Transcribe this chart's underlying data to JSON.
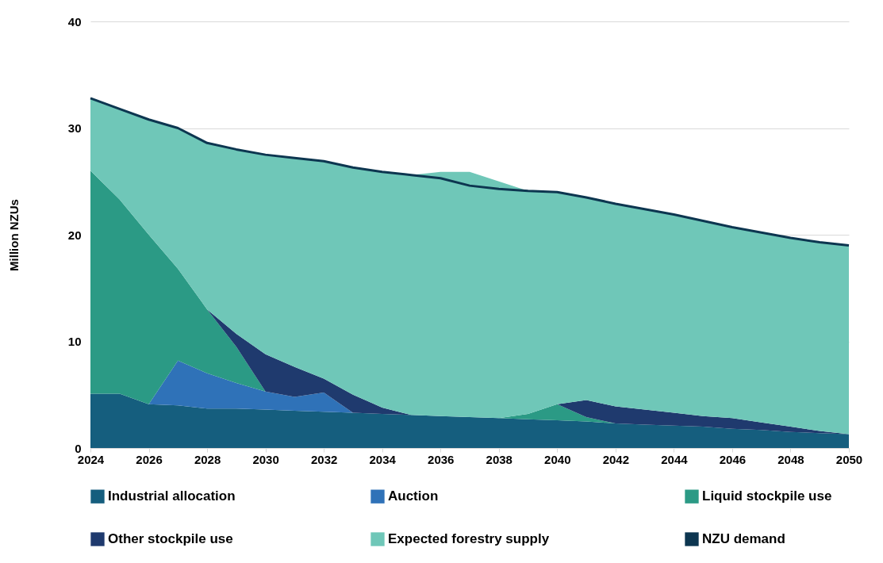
{
  "chart_data": {
    "type": "area",
    "ylabel": "Million NZUs",
    "stacked": true,
    "legend": "bottom",
    "grid": "y",
    "x": [
      2024,
      2025,
      2026,
      2027,
      2028,
      2029,
      2030,
      2031,
      2032,
      2033,
      2034,
      2035,
      2036,
      2037,
      2038,
      2039,
      2040,
      2041,
      2042,
      2043,
      2044,
      2045,
      2046,
      2047,
      2048,
      2049,
      2050
    ],
    "xlim": [
      2024,
      2050
    ],
    "xticks": [
      2024,
      2026,
      2028,
      2030,
      2032,
      2034,
      2036,
      2038,
      2040,
      2042,
      2044,
      2046,
      2048,
      2050
    ],
    "ylim": [
      0,
      40
    ],
    "yticks": [
      0,
      10,
      20,
      30,
      40
    ],
    "series": [
      {
        "name": "Industrial allocation",
        "type": "area",
        "color": "#155e7e",
        "values": [
          5.1,
          5.1,
          4.1,
          4.0,
          3.7,
          3.7,
          3.6,
          3.5,
          3.4,
          3.3,
          3.2,
          3.1,
          3.0,
          2.9,
          2.8,
          2.7,
          2.6,
          2.5,
          2.3,
          2.2,
          2.1,
          2.0,
          1.8,
          1.7,
          1.5,
          1.4,
          1.3
        ]
      },
      {
        "name": "Auction",
        "type": "area",
        "color": "#2f72b8",
        "values": [
          0,
          0,
          0,
          4.2,
          3.3,
          2.4,
          1.7,
          1.3,
          1.8,
          0,
          0,
          0,
          0,
          0,
          0,
          0,
          0,
          0,
          0,
          0,
          0,
          0,
          0,
          0,
          0,
          0,
          0
        ]
      },
      {
        "name": "Liquid stockpile use",
        "type": "area",
        "color": "#2b9a85",
        "values": [
          20.9,
          18.2,
          15.9,
          8.6,
          6.0,
          3.4,
          0,
          0,
          0,
          0,
          0,
          0,
          0,
          0,
          0,
          0.5,
          1.5,
          0.4,
          0,
          0,
          0,
          0,
          0,
          0,
          0,
          0,
          0
        ]
      },
      {
        "name": "Other stockpile use",
        "type": "area",
        "color": "#1f3a6e",
        "values": [
          null,
          null,
          null,
          null,
          0,
          1.2,
          3.5,
          2.8,
          1.3,
          1.7,
          0.6,
          0,
          null,
          null,
          null,
          null,
          0,
          1.6,
          1.6,
          1.4,
          1.2,
          1.0,
          1.0,
          0.7,
          0.5,
          0.2,
          0
        ]
      },
      {
        "name": "Expected forestry supply",
        "type": "area",
        "color": "#6fc7b8",
        "values": [
          6.8,
          8.5,
          10.8,
          13.2,
          15.6,
          17.3,
          18.7,
          19.6,
          20.4,
          21.3,
          22.1,
          22.5,
          22.9,
          23.0,
          22.2,
          20.9,
          19.9,
          19.0,
          19.0,
          18.8,
          18.6,
          18.3,
          17.9,
          17.8,
          17.7,
          17.7,
          17.7
        ]
      },
      {
        "name": "NZU demand",
        "type": "line",
        "color": "#0d3650",
        "values": [
          32.8,
          31.8,
          30.8,
          30.0,
          28.6,
          28.0,
          27.5,
          27.2,
          26.9,
          26.3,
          25.9,
          25.6,
          25.3,
          24.6,
          24.3,
          24.1,
          24.0,
          23.5,
          22.9,
          22.4,
          21.9,
          21.3,
          20.7,
          20.2,
          19.7,
          19.3,
          19.0
        ]
      }
    ]
  }
}
